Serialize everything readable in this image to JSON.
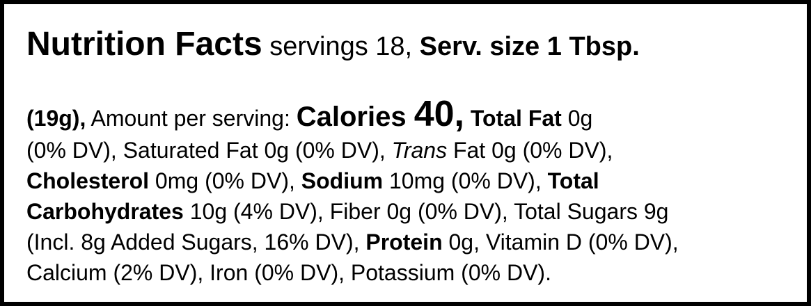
{
  "label": {
    "lines": [
      [
        {
          "text": "Nutrition Facts",
          "style": "title"
        },
        {
          "text": " servings 18, ",
          "style": "head"
        },
        {
          "text": "Serv. size 1 Tbsp.",
          "style": "head-bold"
        }
      ],
      [
        {
          "text": "(19g),",
          "style": "bold"
        },
        {
          "text": " Amount per serving: ",
          "style": "normal"
        },
        {
          "text": "Calories ",
          "style": "calories"
        },
        {
          "text": "40,",
          "style": "calories-value"
        },
        {
          "text": " Total Fat",
          "style": "bold"
        },
        {
          "text": " 0g",
          "style": "normal"
        }
      ],
      [
        {
          "text": "(0% DV), Saturated Fat 0g (0% DV), ",
          "style": "normal"
        },
        {
          "text": "Trans",
          "style": "italic"
        },
        {
          "text": " Fat 0g (0% DV),",
          "style": "normal"
        }
      ],
      [
        {
          "text": "Cholesterol",
          "style": "bold"
        },
        {
          "text": " 0mg (0% DV), ",
          "style": "normal"
        },
        {
          "text": "Sodium",
          "style": "bold"
        },
        {
          "text": " 10mg (0% DV), ",
          "style": "normal"
        },
        {
          "text": "Total",
          "style": "bold"
        }
      ],
      [
        {
          "text": "Carbohydrates",
          "style": "bold"
        },
        {
          "text": " 10g (4% DV), Fiber 0g (0% DV), Total Sugars 9g",
          "style": "normal"
        }
      ],
      [
        {
          "text": "(Incl. 8g Added Sugars, 16% DV), ",
          "style": "normal"
        },
        {
          "text": "Protein",
          "style": "bold"
        },
        {
          "text": " 0g, Vitamin D (0% DV),",
          "style": "normal"
        }
      ],
      [
        {
          "text": "Calcium (2% DV), Iron (0% DV), Potassium (0% DV).",
          "style": "normal"
        }
      ]
    ]
  }
}
